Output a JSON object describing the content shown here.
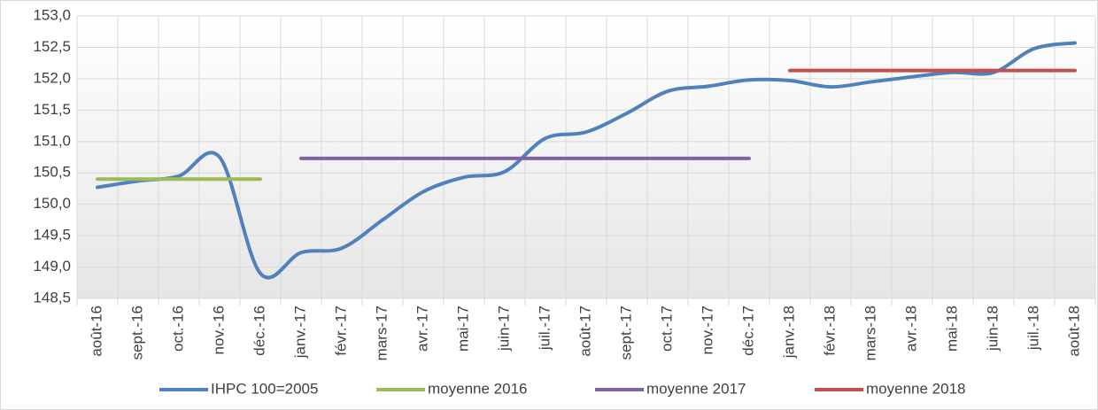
{
  "chart_data": {
    "type": "line",
    "categories": [
      "août-16",
      "sept.-16",
      "oct.-16",
      "nov.-16",
      "déc.-16",
      "janv.-17",
      "févr.-17",
      "mars-17",
      "avr.-17",
      "mai-17",
      "juin-17",
      "juil.-17",
      "août-17",
      "sept.-17",
      "oct.-17",
      "nov.-17",
      "déc.-17",
      "janv.-18",
      "févr.-18",
      "mars-18",
      "avr.-18",
      "mai-18",
      "juin-18",
      "juil.-18",
      "août-18"
    ],
    "series": [
      {
        "name": "IHPC 100=2005",
        "color": "#4f81bd",
        "smooth": true,
        "values": [
          150.27,
          150.37,
          150.45,
          150.75,
          148.9,
          149.23,
          149.3,
          149.75,
          150.2,
          150.43,
          150.52,
          151.05,
          151.15,
          151.45,
          151.8,
          151.88,
          151.98,
          151.97,
          151.87,
          151.95,
          152.03,
          152.1,
          152.1,
          152.48,
          152.57
        ]
      },
      {
        "name": "moyenne 2016",
        "color": "#9bbb59",
        "values": [
          150.4,
          150.4,
          150.4,
          150.4,
          150.4,
          null,
          null,
          null,
          null,
          null,
          null,
          null,
          null,
          null,
          null,
          null,
          null,
          null,
          null,
          null,
          null,
          null,
          null,
          null,
          null
        ]
      },
      {
        "name": "moyenne 2017",
        "color": "#8064a2",
        "values": [
          null,
          null,
          null,
          null,
          null,
          150.73,
          150.73,
          150.73,
          150.73,
          150.73,
          150.73,
          150.73,
          150.73,
          150.73,
          150.73,
          150.73,
          150.73,
          null,
          null,
          null,
          null,
          null,
          null,
          null,
          null
        ]
      },
      {
        "name": "moyenne 2018",
        "color": "#c0504d",
        "values": [
          null,
          null,
          null,
          null,
          null,
          null,
          null,
          null,
          null,
          null,
          null,
          null,
          null,
          null,
          null,
          null,
          null,
          152.13,
          152.13,
          152.13,
          152.13,
          152.13,
          152.13,
          152.13,
          152.13
        ]
      }
    ],
    "ylim": [
      148.5,
      153.0
    ],
    "yticks": [
      {
        "value": 148.5,
        "label": "148,5"
      },
      {
        "value": 149.0,
        "label": "149,0"
      },
      {
        "value": 149.5,
        "label": "149,5"
      },
      {
        "value": 150.0,
        "label": "150,0"
      },
      {
        "value": 150.5,
        "label": "150,5"
      },
      {
        "value": 151.0,
        "label": "151,0"
      },
      {
        "value": 151.5,
        "label": "151,5"
      },
      {
        "value": 152.0,
        "label": "152,0"
      },
      {
        "value": 152.5,
        "label": "152,5"
      },
      {
        "value": 153.0,
        "label": "153,0"
      }
    ],
    "grid": true,
    "legend": "bottom"
  }
}
